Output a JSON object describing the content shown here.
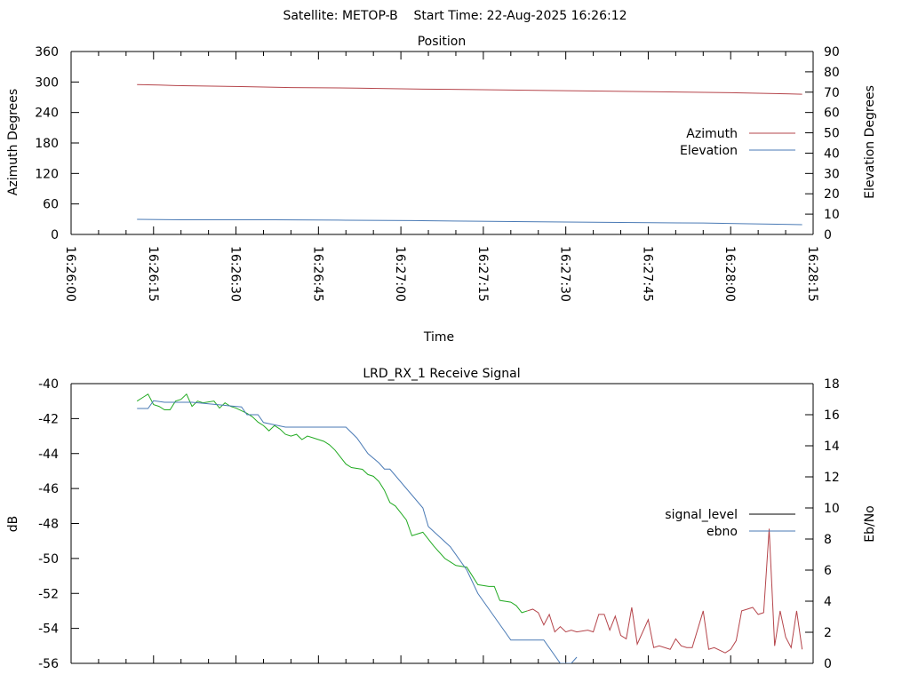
{
  "header": "Satellite: METOP-B    Start Time: 22-Aug-2025 16:26:12",
  "chart_data": [
    {
      "type": "line",
      "title": "Position",
      "xlabel": "Time",
      "ylabel_left": "Azimuth Degrees",
      "ylabel_right": "Elevation Degrees",
      "x_ticks": [
        "16:26:00",
        "16:26:15",
        "16:26:30",
        "16:26:45",
        "16:27:00",
        "16:27:15",
        "16:27:30",
        "16:27:45",
        "16:28:00",
        "16:28:15"
      ],
      "xlim": [
        "16:26:00",
        "16:28:15"
      ],
      "ylim_left": [
        0,
        360
      ],
      "ylim_right": [
        0,
        90
      ],
      "y_ticks_left": [
        0,
        60,
        120,
        180,
        240,
        300,
        360
      ],
      "y_ticks_right": [
        0,
        10,
        20,
        30,
        40,
        50,
        60,
        70,
        80,
        90
      ],
      "legend_position": "right",
      "series": [
        {
          "name": "Azimuth",
          "axis": "left",
          "color": "#b5454b",
          "x": [
            "16:26:12",
            "16:26:16",
            "16:26:19",
            "16:26:31",
            "16:26:40",
            "16:26:52",
            "16:27:04",
            "16:27:13",
            "16:27:28",
            "16:27:37",
            "16:27:52",
            "16:28:00",
            "16:28:13"
          ],
          "y": [
            295,
            294,
            293,
            291,
            289,
            288,
            286,
            285,
            283,
            282,
            280,
            279,
            276
          ]
        },
        {
          "name": "Elevation",
          "axis": "right",
          "color": "#4a7ab5",
          "x": [
            "16:26:12",
            "16:26:20",
            "16:26:37",
            "16:26:50",
            "16:27:02",
            "16:27:14",
            "16:27:25",
            "16:27:40",
            "16:27:55",
            "16:28:02",
            "16:28:13"
          ],
          "y": [
            7.4,
            7.2,
            7.2,
            7.0,
            6.8,
            6.5,
            6.2,
            5.9,
            5.6,
            5.3,
            4.8
          ]
        }
      ]
    },
    {
      "type": "line",
      "title": "LRD_RX_1 Receive Signal",
      "ylabel_left": "dB",
      "ylabel_right": "Eb/No",
      "xlim": [
        "16:26:00",
        "16:28:15"
      ],
      "ylim_left": [
        -56,
        -40
      ],
      "ylim_right": [
        0,
        18
      ],
      "y_ticks_left": [
        -56,
        -54,
        -52,
        -50,
        -48,
        -46,
        -44,
        -42,
        -40
      ],
      "y_ticks_right": [
        0,
        2,
        4,
        6,
        8,
        10,
        12,
        14,
        16,
        18
      ],
      "legend_position": "right",
      "series": [
        {
          "name": "signal_level",
          "axis": "left",
          "legend_color": "#000000",
          "segment_colors": [
            "#22aa22",
            "#b5454b"
          ],
          "color_switch_x": "16:27:23",
          "x": [
            "16:26:12",
            "16:26:13",
            "16:26:14",
            "16:26:15",
            "16:26:16",
            "16:26:17",
            "16:26:18",
            "16:26:19",
            "16:26:20",
            "16:26:21",
            "16:26:22",
            "16:26:23",
            "16:26:24",
            "16:26:26",
            "16:26:27",
            "16:26:28",
            "16:26:29",
            "16:26:30",
            "16:26:32",
            "16:26:33",
            "16:26:34",
            "16:26:35",
            "16:26:36",
            "16:26:37",
            "16:26:38",
            "16:26:39",
            "16:26:40",
            "16:26:41",
            "16:26:42",
            "16:26:43",
            "16:26:44",
            "16:26:46",
            "16:26:47",
            "16:26:48",
            "16:26:49",
            "16:26:50",
            "16:26:51",
            "16:26:53",
            "16:26:54",
            "16:26:55",
            "16:26:56",
            "16:26:57",
            "16:26:58",
            "16:26:59",
            "16:27:00",
            "16:27:01",
            "16:27:02",
            "16:27:04",
            "16:27:06",
            "16:27:08",
            "16:27:09",
            "16:27:10",
            "16:27:12",
            "16:27:13",
            "16:27:14",
            "16:27:16",
            "16:27:17",
            "16:27:18",
            "16:27:20",
            "16:27:21",
            "16:27:22",
            "16:27:23",
            "16:27:24",
            "16:27:25",
            "16:27:26",
            "16:27:27",
            "16:27:28",
            "16:27:29",
            "16:27:30",
            "16:27:31",
            "16:27:32",
            "16:27:34",
            "16:27:35",
            "16:27:36",
            "16:27:37",
            "16:27:38",
            "16:27:39",
            "16:27:40",
            "16:27:41",
            "16:27:42",
            "16:27:43",
            "16:27:45",
            "16:27:46",
            "16:27:47",
            "16:27:49",
            "16:27:50",
            "16:27:51",
            "16:27:52",
            "16:27:53",
            "16:27:55",
            "16:27:56",
            "16:27:57",
            "16:27:59",
            "16:28:00",
            "16:28:01",
            "16:28:02",
            "16:28:03",
            "16:28:04",
            "16:28:05",
            "16:28:06",
            "16:28:07",
            "16:28:08",
            "16:28:09",
            "16:28:10",
            "16:28:11",
            "16:28:12",
            "16:28:13"
          ],
          "y": [
            -41.0,
            -40.8,
            -40.6,
            -41.2,
            -41.3,
            -41.5,
            -41.5,
            -41.0,
            -40.9,
            -40.6,
            -41.3,
            -41.0,
            -41.1,
            -41.0,
            -41.4,
            -41.1,
            -41.3,
            -41.4,
            -41.7,
            -41.9,
            -42.2,
            -42.4,
            -42.7,
            -42.4,
            -42.6,
            -42.9,
            -43.0,
            -42.9,
            -43.2,
            -43.0,
            -43.1,
            -43.3,
            -43.5,
            -43.8,
            -44.2,
            -44.6,
            -44.8,
            -44.9,
            -45.2,
            -45.3,
            -45.6,
            -46.1,
            -46.8,
            -47.0,
            -47.4,
            -47.8,
            -48.7,
            -48.5,
            -49.3,
            -50.0,
            -50.2,
            -50.4,
            -50.5,
            -51.0,
            -51.5,
            -51.6,
            -51.6,
            -52.4,
            -52.5,
            -52.7,
            -53.1,
            -53.0,
            -52.9,
            -53.1,
            -53.8,
            -53.2,
            -54.2,
            -53.9,
            -54.2,
            -54.1,
            -54.2,
            -54.1,
            -54.2,
            -53.2,
            -53.2,
            -54.1,
            -53.3,
            -54.4,
            -54.6,
            -52.8,
            -54.9,
            -53.5,
            -55.1,
            -55.0,
            -55.2,
            -54.6,
            -55.0,
            -55.1,
            -55.1,
            -53.0,
            -55.2,
            -55.1,
            -55.4,
            -55.2,
            -54.7,
            -53.0,
            -52.9,
            -52.8,
            -53.2,
            -53.1,
            -48.3,
            -55.0,
            -53.0,
            -54.5,
            -55.1,
            -53.0,
            -55.2
          ]
        },
        {
          "name": "ebno",
          "axis": "right",
          "color": "#4a7ab5",
          "x": [
            "16:26:12",
            "16:26:14",
            "16:26:15",
            "16:26:17",
            "16:26:22",
            "16:26:31",
            "16:26:32",
            "16:26:34",
            "16:26:35",
            "16:26:39",
            "16:26:50",
            "16:26:52",
            "16:26:54",
            "16:26:56",
            "16:26:57",
            "16:26:58",
            "16:27:04",
            "16:27:05",
            "16:27:09",
            "16:27:12",
            "16:27:14",
            "16:27:16",
            "16:27:17",
            "16:27:19",
            "16:27:20",
            "16:27:22",
            "16:27:26",
            "16:27:29",
            "16:27:31",
            "16:27:32"
          ],
          "y": [
            16.4,
            16.4,
            16.9,
            16.8,
            16.8,
            16.5,
            16.0,
            16.0,
            15.5,
            15.2,
            15.2,
            14.5,
            13.5,
            12.9,
            12.5,
            12.5,
            10.0,
            8.8,
            7.5,
            6.0,
            4.5,
            3.5,
            3.0,
            2.0,
            1.5,
            1.5,
            1.5,
            0.0,
            0.0,
            0.4
          ]
        }
      ]
    }
  ]
}
